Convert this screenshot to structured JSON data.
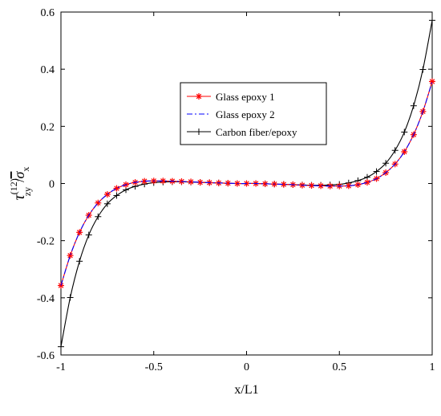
{
  "chart_data": {
    "type": "line",
    "title": "",
    "xlabel": "x/L1",
    "ylabel": {
      "base": "τ",
      "sup": "(12)",
      "sub": "zy",
      "slash": "/",
      "denom": "σ",
      "denom_sub": "x"
    },
    "xlim": [
      -1,
      1
    ],
    "ylim": [
      -0.6,
      0.6
    ],
    "x_ticks": [
      -1,
      -0.5,
      0,
      0.5,
      1
    ],
    "x_tick_labels": [
      "-1",
      "-0.5",
      "0",
      "0.5",
      "1"
    ],
    "y_ticks": [
      -0.6,
      -0.4,
      -0.2,
      0,
      0.2,
      0.4,
      0.6
    ],
    "y_tick_labels": [
      "-0.6",
      "-0.4",
      "-0.2",
      "0",
      "0.2",
      "0.4",
      "0.6"
    ],
    "grid": false,
    "legend_position": "center-top",
    "x": [
      -1.0,
      -0.95,
      -0.9,
      -0.85,
      -0.8,
      -0.75,
      -0.7,
      -0.65,
      -0.6,
      -0.55,
      -0.5,
      -0.45,
      -0.4,
      -0.35,
      -0.3,
      -0.25,
      -0.2,
      -0.15,
      -0.1,
      -0.05,
      0.0,
      0.05,
      0.1,
      0.15,
      0.2,
      0.25,
      0.3,
      0.35,
      0.4,
      0.45,
      0.5,
      0.55,
      0.6,
      0.65,
      0.7,
      0.75,
      0.8,
      0.85,
      0.9,
      0.95,
      1.0
    ],
    "series": [
      {
        "name": "Glass epoxy 1",
        "color": "#ff0000",
        "dash": "solid",
        "marker": "asterisk",
        "values": [
          -0.357,
          -0.252,
          -0.171,
          -0.111,
          -0.068,
          -0.038,
          -0.017,
          -0.004,
          0.004,
          0.008,
          0.009,
          0.009,
          0.008,
          0.007,
          0.006,
          0.004,
          0.003,
          0.002,
          0.001,
          0.0,
          0.0,
          0.0,
          -0.001,
          -0.002,
          -0.003,
          -0.004,
          -0.006,
          -0.007,
          -0.008,
          -0.009,
          -0.009,
          -0.008,
          -0.004,
          0.004,
          0.017,
          0.038,
          0.068,
          0.111,
          0.171,
          0.252,
          0.357
        ]
      },
      {
        "name": "Glass epoxy 2",
        "color": "#0000ff",
        "dash": "dashdot",
        "marker": "none",
        "values": [
          -0.357,
          -0.252,
          -0.171,
          -0.111,
          -0.068,
          -0.038,
          -0.017,
          -0.004,
          0.004,
          0.008,
          0.009,
          0.009,
          0.008,
          0.007,
          0.006,
          0.004,
          0.003,
          0.002,
          0.001,
          0.0,
          0.0,
          0.0,
          -0.001,
          -0.002,
          -0.003,
          -0.004,
          -0.006,
          -0.007,
          -0.008,
          -0.009,
          -0.009,
          -0.008,
          -0.004,
          0.004,
          0.017,
          0.038,
          0.068,
          0.111,
          0.171,
          0.252,
          0.357
        ]
      },
      {
        "name": "Carbon fiber/epoxy",
        "color": "#000000",
        "dash": "solid",
        "marker": "plus",
        "values": [
          -0.571,
          -0.399,
          -0.272,
          -0.18,
          -0.116,
          -0.071,
          -0.042,
          -0.022,
          -0.01,
          -0.002,
          0.003,
          0.005,
          0.006,
          0.006,
          0.005,
          0.004,
          0.003,
          0.002,
          0.001,
          0.0,
          0.0,
          0.0,
          -0.001,
          -0.002,
          -0.003,
          -0.004,
          -0.005,
          -0.006,
          -0.006,
          -0.005,
          -0.003,
          0.002,
          0.01,
          0.022,
          0.042,
          0.071,
          0.116,
          0.18,
          0.272,
          0.399,
          0.571
        ]
      }
    ]
  }
}
